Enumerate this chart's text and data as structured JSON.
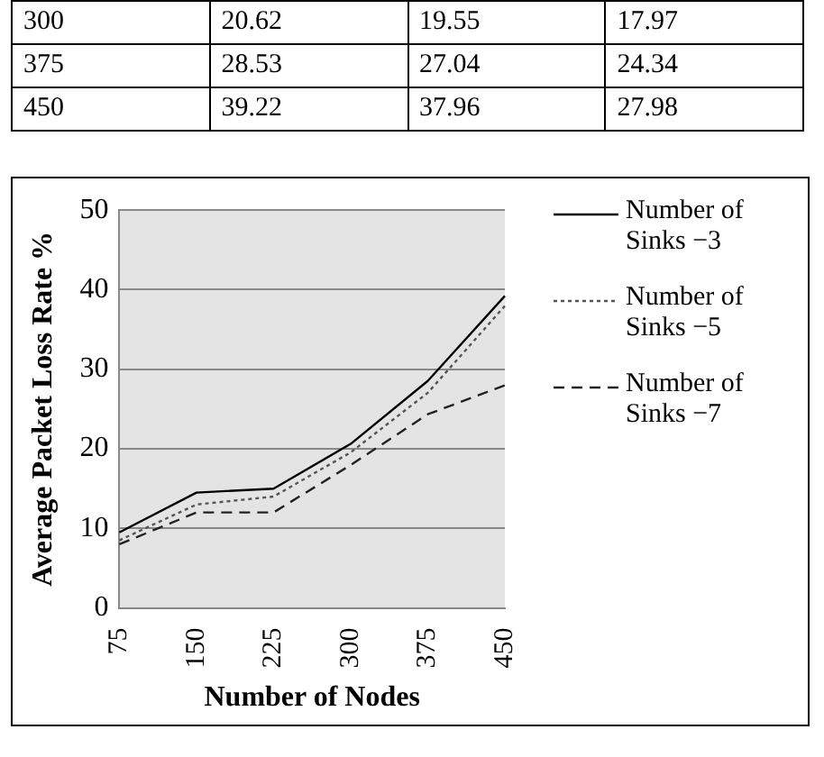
{
  "chart_data": {
    "type": "line",
    "xlabel": "Number of Nodes",
    "ylabel": "Average Packet Loss Rate %",
    "categories": [
      "75",
      "150",
      "225",
      "300",
      "375",
      "450"
    ],
    "annotations": [
      "300",
      "20.62",
      "19.55",
      "17.97",
      "375",
      "28.53",
      "27.04",
      "24.34",
      "450",
      "39.22",
      "37.96",
      "27.98"
    ],
    "ylim": [
      0,
      50
    ],
    "yticks": [
      0,
      10,
      20,
      30,
      40,
      50
    ],
    "grid": "y",
    "legend": "right",
    "marker": "none",
    "series": [
      {
        "name": "Number of Sinks −3",
        "color": "#000000",
        "line_style": "solid",
        "values": [
          9.5,
          14.5,
          15,
          20.62,
          28.53,
          39.22
        ]
      },
      {
        "name": "Number of Sinks −5",
        "color": "#555555",
        "line_style": "dotted",
        "values": [
          8.5,
          13,
          14,
          19.55,
          27.04,
          37.96
        ]
      },
      {
        "name": "Number of Sinks −7",
        "color": "#222222",
        "line_style": "dashed",
        "values": [
          8,
          12,
          12,
          17.97,
          24.34,
          27.98
        ]
      }
    ]
  }
}
